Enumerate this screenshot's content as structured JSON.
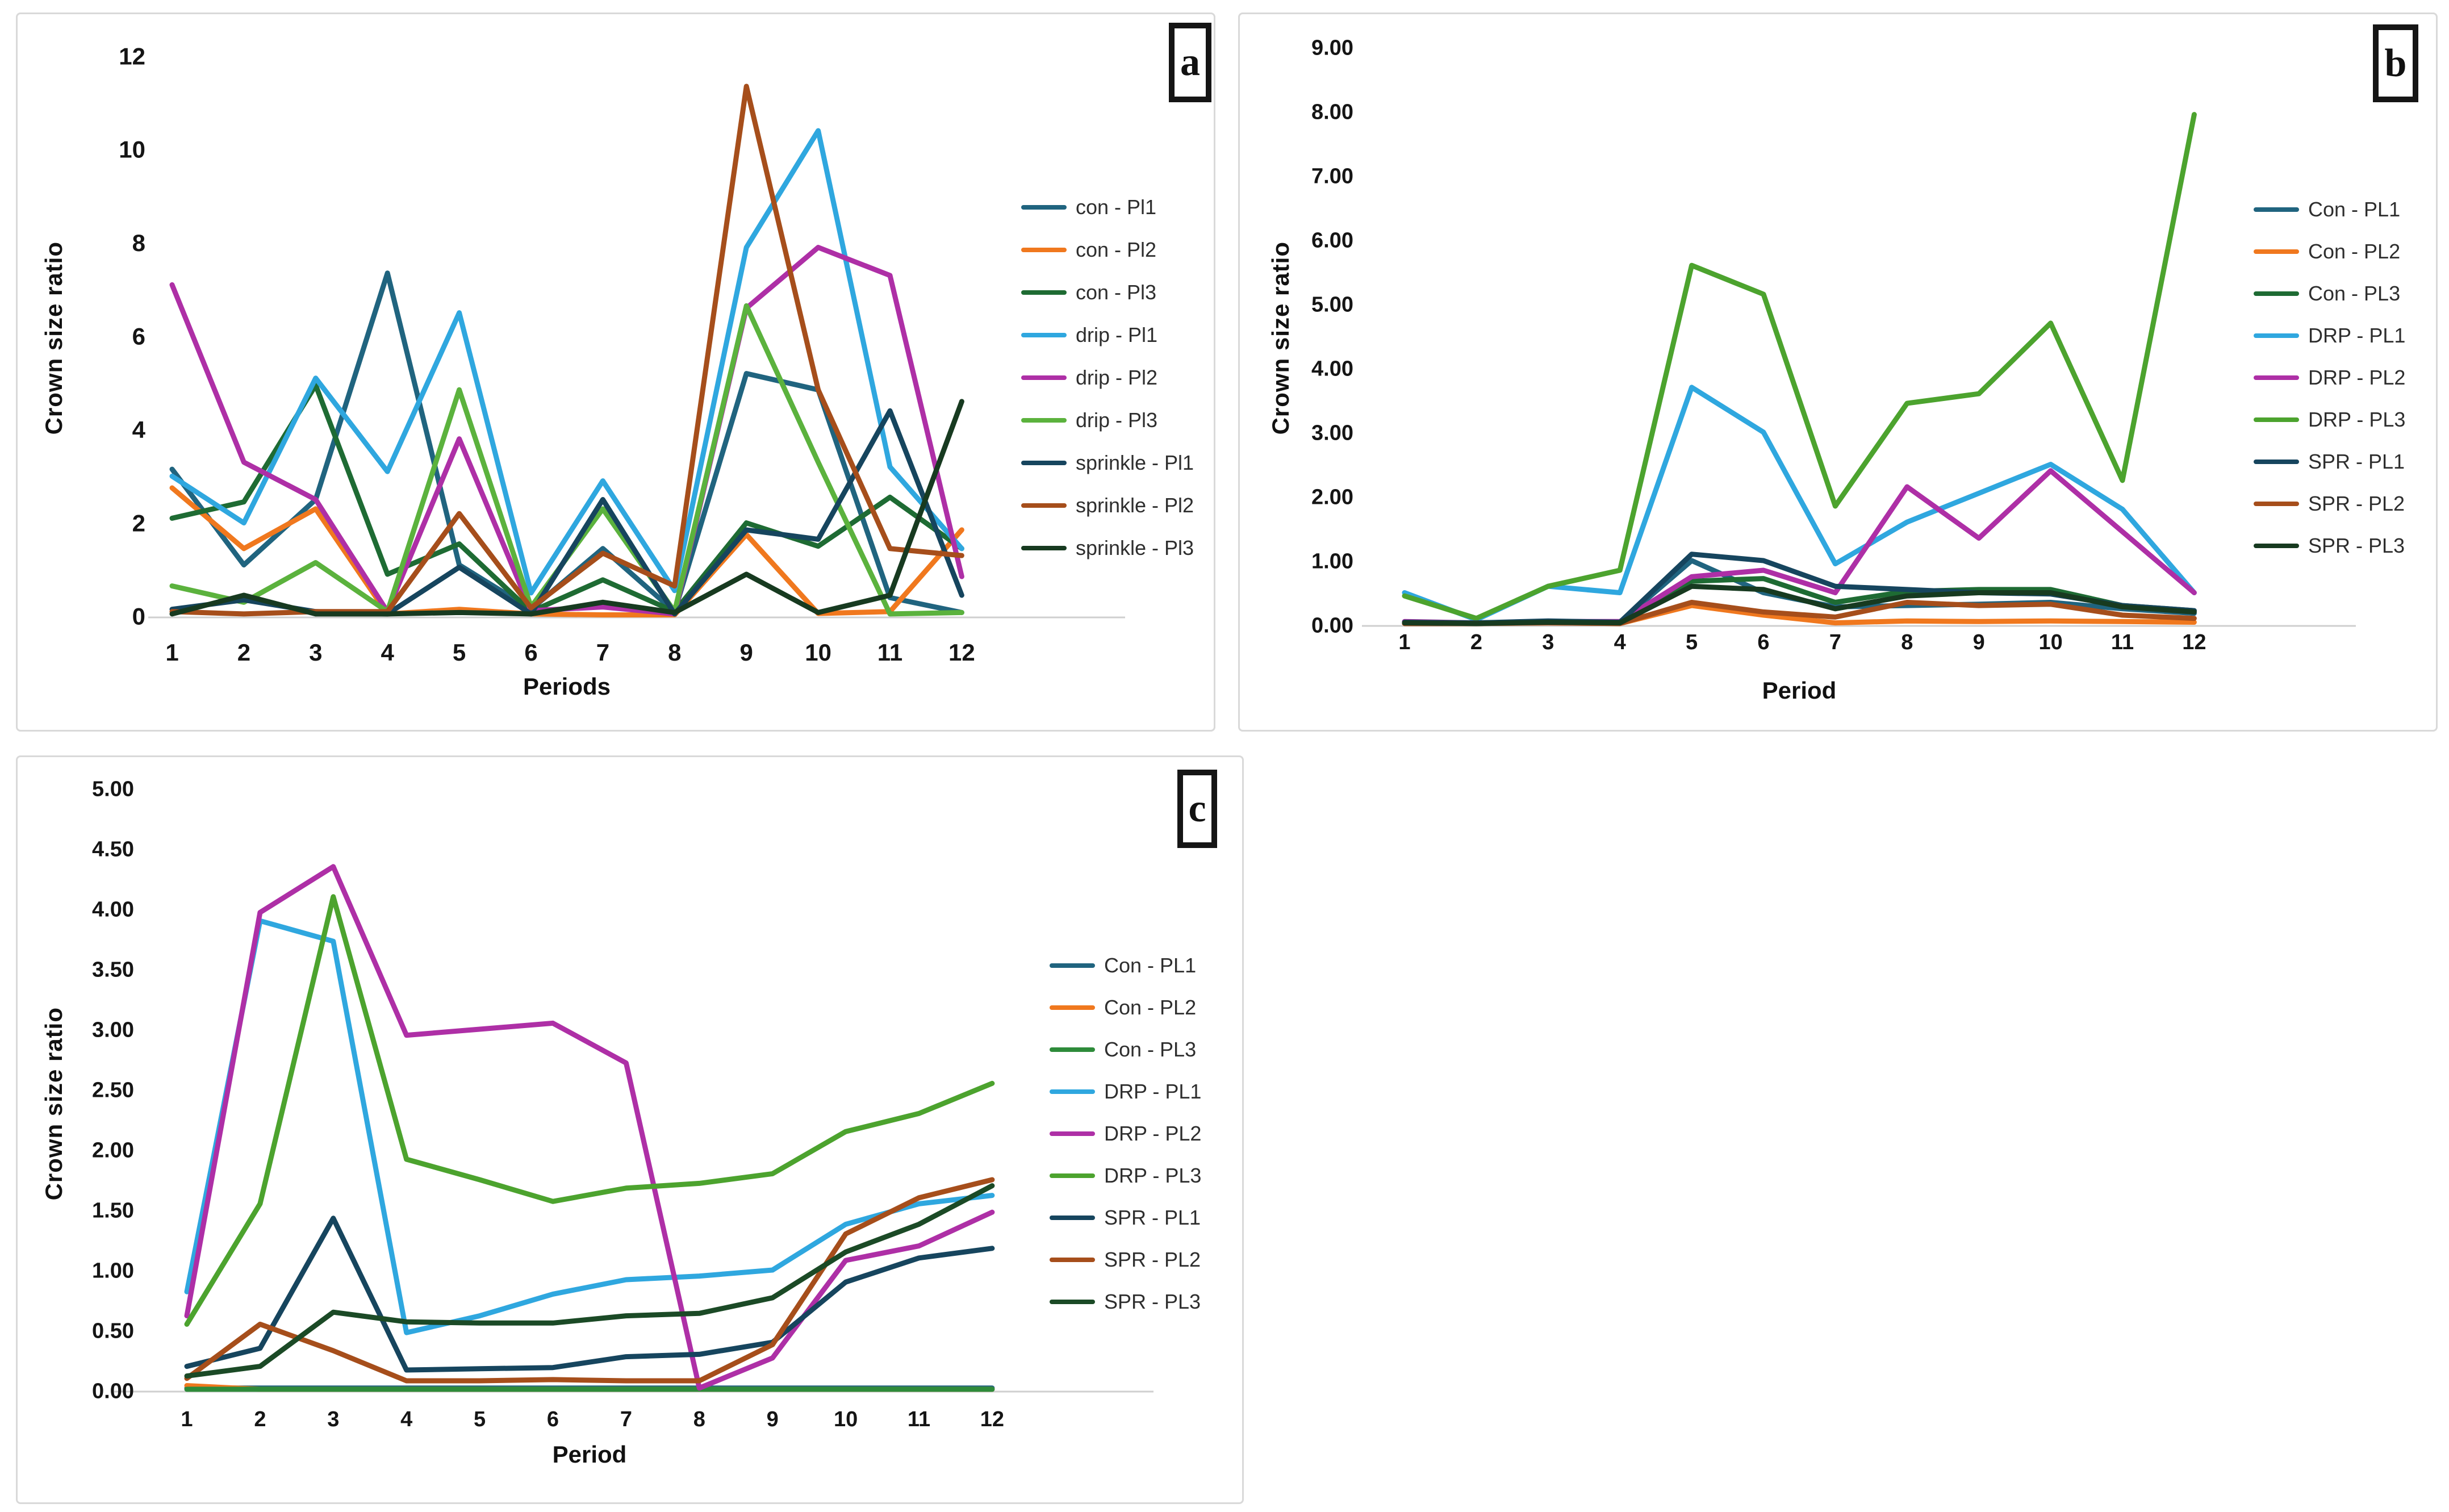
{
  "chart_data": [
    {
      "type": "line",
      "panel_label": "a",
      "title": "",
      "xlabel": "Periods",
      "ylabel": "Crown size ratio",
      "x": [
        1,
        2,
        3,
        4,
        5,
        6,
        7,
        8,
        9,
        10,
        11,
        12
      ],
      "x_tick_labels": [
        "1",
        "2",
        "3",
        "4",
        "5",
        "6",
        "7",
        "8",
        "9",
        "10",
        "11",
        "12"
      ],
      "ylim": [
        0,
        12
      ],
      "y_tick_values": [
        0,
        2,
        4,
        6,
        8,
        10,
        12
      ],
      "y_tick_labels": [
        "0",
        "2",
        "4",
        "6",
        "8",
        "10",
        "12"
      ],
      "grid": "off",
      "legend_position": "right",
      "series": [
        {
          "name": "con - Pl1",
          "color": "#20647F",
          "values": [
            3.15,
            1.1,
            2.5,
            7.35,
            1.1,
            0.15,
            1.45,
            0.1,
            5.2,
            4.85,
            0.4,
            0.08
          ]
        },
        {
          "name": "con - Pl2",
          "color": "#F0781E",
          "values": [
            2.75,
            1.45,
            2.3,
            0.05,
            0.15,
            0.05,
            0.03,
            0.03,
            1.75,
            0.06,
            0.1,
            1.85
          ]
        },
        {
          "name": "con - Pl3",
          "color": "#1E6B33",
          "values": [
            2.1,
            2.45,
            4.95,
            0.9,
            1.55,
            0.1,
            0.78,
            0.1,
            2.0,
            1.5,
            2.55,
            1.45
          ]
        },
        {
          "name": "drip - Pl1",
          "color": "#2FA7DF",
          "values": [
            3.0,
            2.0,
            5.1,
            3.1,
            6.5,
            0.5,
            2.9,
            0.55,
            7.9,
            10.4,
            3.2,
            1.45
          ]
        },
        {
          "name": "drip - Pl2",
          "color": "#AE2FA6",
          "values": [
            7.1,
            3.3,
            2.5,
            0.1,
            3.8,
            0.12,
            0.2,
            0.05,
            6.6,
            7.9,
            7.3,
            0.85
          ]
        },
        {
          "name": "drip - Pl3",
          "color": "#5BB23D",
          "values": [
            0.65,
            0.3,
            1.15,
            0.1,
            4.85,
            0.2,
            2.3,
            0.1,
            6.65,
            3.3,
            0.05,
            0.08
          ]
        },
        {
          "name": "sprinkle - Pl1",
          "color": "#16455E",
          "values": [
            0.15,
            0.35,
            0.1,
            0.05,
            1.05,
            0.05,
            2.5,
            0.05,
            1.85,
            1.65,
            4.4,
            0.45
          ]
        },
        {
          "name": "sprinkle - Pl2",
          "color": "#A64E1B",
          "values": [
            0.1,
            0.05,
            0.1,
            0.1,
            2.2,
            0.18,
            1.35,
            0.65,
            11.35,
            4.85,
            1.45,
            1.3
          ]
        },
        {
          "name": "sprinkle - Pl3",
          "color": "#173A20",
          "values": [
            0.05,
            0.45,
            0.05,
            0.05,
            0.08,
            0.05,
            0.3,
            0.08,
            0.9,
            0.08,
            0.45,
            4.6
          ]
        }
      ]
    },
    {
      "type": "line",
      "panel_label": "b",
      "title": "",
      "xlabel": "Period",
      "ylabel": "Crown size ratio",
      "x": [
        1,
        2,
        3,
        4,
        5,
        6,
        7,
        8,
        9,
        10,
        11,
        12
      ],
      "x_tick_labels": [
        "1",
        "2",
        "3",
        "4",
        "5",
        "6",
        "7",
        "8",
        "9",
        "10",
        "11",
        "12"
      ],
      "ylim": [
        0,
        9
      ],
      "y_tick_values": [
        0,
        1,
        2,
        3,
        4,
        5,
        6,
        7,
        8,
        9
      ],
      "y_tick_labels": [
        "0.00",
        "1.00",
        "2.00",
        "3.00",
        "4.00",
        "5.00",
        "6.00",
        "7.00",
        "8.00",
        "9.00"
      ],
      "grid": "off",
      "legend_position": "right",
      "series": [
        {
          "name": "Con - PL1",
          "color": "#20647F",
          "values": [
            0.04,
            0.03,
            0.05,
            0.04,
            1.0,
            0.5,
            0.28,
            0.3,
            0.32,
            0.35,
            0.25,
            0.18
          ]
        },
        {
          "name": "Con - PL2",
          "color": "#F0781E",
          "values": [
            0.02,
            0.02,
            0.03,
            0.02,
            0.3,
            0.15,
            0.03,
            0.06,
            0.05,
            0.06,
            0.05,
            0.04
          ]
        },
        {
          "name": "Con - PL3",
          "color": "#1E6B33",
          "values": [
            0.03,
            0.02,
            0.04,
            0.03,
            0.68,
            0.72,
            0.35,
            0.52,
            0.55,
            0.55,
            0.3,
            0.22
          ]
        },
        {
          "name": "DRP - PL1",
          "color": "#2FA7DF",
          "values": [
            0.5,
            0.08,
            0.6,
            0.5,
            3.7,
            3.0,
            0.95,
            1.6,
            2.05,
            2.5,
            1.8,
            0.5
          ]
        },
        {
          "name": "DRP - PL2",
          "color": "#AE2FA6",
          "values": [
            0.05,
            0.03,
            0.05,
            0.05,
            0.75,
            0.85,
            0.5,
            2.15,
            1.35,
            2.4,
            1.45,
            0.5
          ]
        },
        {
          "name": "DRP - PL3",
          "color": "#4CA32E",
          "values": [
            0.45,
            0.1,
            0.6,
            0.85,
            5.6,
            5.15,
            1.85,
            3.45,
            3.6,
            4.7,
            2.25,
            7.95
          ]
        },
        {
          "name": "SPR - PL1",
          "color": "#16455E",
          "values": [
            0.04,
            0.03,
            0.06,
            0.04,
            1.1,
            1.0,
            0.6,
            0.55,
            0.5,
            0.48,
            0.3,
            0.22
          ]
        },
        {
          "name": "SPR - PL2",
          "color": "#A64E1B",
          "values": [
            0.02,
            0.02,
            0.03,
            0.02,
            0.35,
            0.2,
            0.12,
            0.35,
            0.3,
            0.32,
            0.15,
            0.1
          ]
        },
        {
          "name": "SPR - PL3",
          "color": "#173A20",
          "values": [
            0.03,
            0.02,
            0.04,
            0.03,
            0.6,
            0.55,
            0.25,
            0.45,
            0.5,
            0.5,
            0.28,
            0.2
          ]
        }
      ]
    },
    {
      "type": "line",
      "panel_label": "c",
      "title": "",
      "xlabel": "Period",
      "ylabel": "Crown size ratio",
      "x": [
        1,
        2,
        3,
        4,
        5,
        6,
        7,
        8,
        9,
        10,
        11,
        12
      ],
      "x_tick_labels": [
        "1",
        "2",
        "3",
        "4",
        "5",
        "6",
        "7",
        "8",
        "9",
        "10",
        "11",
        "12"
      ],
      "ylim": [
        0,
        5
      ],
      "y_tick_values": [
        0,
        0.5,
        1,
        1.5,
        2,
        2.5,
        3,
        3.5,
        4,
        4.5,
        5
      ],
      "y_tick_labels": [
        "0.00",
        "0.50",
        "1.00",
        "1.50",
        "2.00",
        "2.50",
        "3.00",
        "3.50",
        "4.00",
        "4.50",
        "5.00"
      ],
      "grid": "off",
      "legend_position": "right",
      "series": [
        {
          "name": "Con - PL1",
          "color": "#20647F",
          "values": [
            0.02,
            0.02,
            0.02,
            0.02,
            0.02,
            0.02,
            0.02,
            0.02,
            0.02,
            0.02,
            0.02,
            0.02
          ]
        },
        {
          "name": "Con - PL2",
          "color": "#F0781E",
          "values": [
            0.04,
            0.01,
            0.01,
            0.01,
            0.01,
            0.01,
            0.01,
            0.01,
            0.01,
            0.01,
            0.01,
            0.01
          ]
        },
        {
          "name": "Con - PL3",
          "color": "#2E8B3A",
          "values": [
            0.01,
            0.01,
            0.01,
            0.01,
            0.01,
            0.01,
            0.01,
            0.01,
            0.01,
            0.01,
            0.01,
            0.01
          ]
        },
        {
          "name": "DRP - PL1",
          "color": "#2FA7DF",
          "values": [
            0.82,
            3.9,
            3.73,
            0.48,
            0.62,
            0.8,
            0.92,
            0.95,
            1.0,
            1.38,
            1.55,
            1.62
          ]
        },
        {
          "name": "DRP - PL2",
          "color": "#AE2FA6",
          "values": [
            0.62,
            3.97,
            4.35,
            2.95,
            3.0,
            3.05,
            2.72,
            0.02,
            0.27,
            1.08,
            1.2,
            1.48
          ]
        },
        {
          "name": "DRP - PL3",
          "color": "#4CA32E",
          "values": [
            0.55,
            1.55,
            4.1,
            1.92,
            1.75,
            1.57,
            1.68,
            1.72,
            1.8,
            2.15,
            2.3,
            2.55
          ]
        },
        {
          "name": "SPR - PL1",
          "color": "#16455E",
          "values": [
            0.2,
            0.35,
            1.43,
            0.17,
            0.18,
            0.19,
            0.28,
            0.3,
            0.4,
            0.9,
            1.1,
            1.18
          ]
        },
        {
          "name": "SPR - PL2",
          "color": "#A64E1B",
          "values": [
            0.1,
            0.55,
            0.33,
            0.08,
            0.08,
            0.09,
            0.08,
            0.08,
            0.38,
            1.3,
            1.6,
            1.75
          ]
        },
        {
          "name": "SPR - PL3",
          "color": "#1B4A26",
          "values": [
            0.12,
            0.2,
            0.65,
            0.57,
            0.56,
            0.56,
            0.62,
            0.64,
            0.77,
            1.15,
            1.38,
            1.7
          ]
        }
      ]
    }
  ],
  "style": {
    "axis_line_color": "#cfcfcf",
    "background": "#ffffff"
  }
}
